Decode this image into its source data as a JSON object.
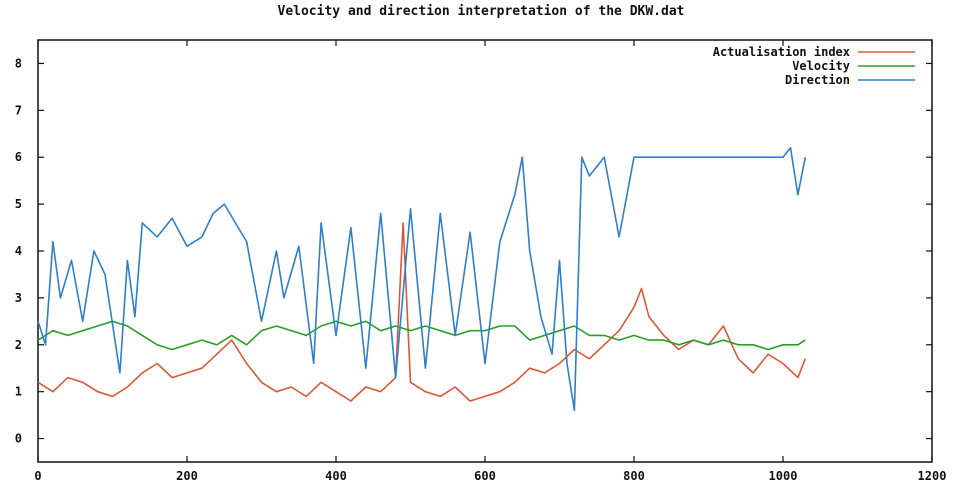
{
  "chart_data": {
    "type": "line",
    "title": "Velocity and direction interpretation of the DKW.dat",
    "xlabel": "",
    "ylabel": "",
    "xlim": [
      0,
      1200
    ],
    "ylim": [
      -0.5,
      8.5
    ],
    "xticks": [
      0,
      200,
      400,
      600,
      800,
      1000,
      1200
    ],
    "yticks": [
      0,
      1,
      2,
      3,
      4,
      5,
      6,
      7,
      8
    ],
    "grid": false,
    "legend_position": "top-right",
    "colors": {
      "Actualisation index": "#d9583b",
      "Velocity": "#2aa02a",
      "Direction": "#2f7fcc"
    },
    "series": [
      {
        "name": "Actualisation index",
        "x": [
          0,
          20,
          40,
          60,
          80,
          100,
          120,
          140,
          160,
          180,
          200,
          220,
          240,
          260,
          280,
          300,
          320,
          340,
          360,
          380,
          400,
          420,
          440,
          460,
          480,
          490,
          500,
          520,
          540,
          560,
          580,
          600,
          620,
          640,
          660,
          680,
          700,
          720,
          740,
          760,
          780,
          800,
          810,
          820,
          840,
          860,
          880,
          900,
          920,
          940,
          960,
          980,
          1000,
          1020,
          1030
        ],
        "y": [
          1.2,
          1.0,
          1.3,
          1.2,
          1.0,
          0.9,
          1.1,
          1.4,
          1.6,
          1.3,
          1.4,
          1.5,
          1.8,
          2.1,
          1.6,
          1.2,
          1.0,
          1.1,
          0.9,
          1.2,
          1.0,
          0.8,
          1.1,
          1.0,
          1.3,
          4.6,
          1.2,
          1.0,
          0.9,
          1.1,
          0.8,
          0.9,
          1.0,
          1.2,
          1.5,
          1.4,
          1.6,
          1.9,
          1.7,
          2.0,
          2.3,
          2.8,
          3.2,
          2.6,
          2.2,
          1.9,
          2.1,
          2.0,
          2.4,
          1.7,
          1.4,
          1.8,
          1.6,
          1.3,
          1.7
        ]
      },
      {
        "name": "Velocity",
        "x": [
          0,
          20,
          40,
          60,
          80,
          100,
          120,
          140,
          160,
          180,
          200,
          220,
          240,
          260,
          280,
          300,
          320,
          340,
          360,
          380,
          400,
          420,
          440,
          460,
          480,
          500,
          520,
          540,
          560,
          580,
          600,
          620,
          640,
          660,
          680,
          700,
          720,
          740,
          760,
          780,
          800,
          820,
          840,
          860,
          880,
          900,
          920,
          940,
          960,
          980,
          1000,
          1020,
          1030
        ],
        "y": [
          2.1,
          2.3,
          2.2,
          2.3,
          2.4,
          2.5,
          2.4,
          2.2,
          2.0,
          1.9,
          2.0,
          2.1,
          2.0,
          2.2,
          2.0,
          2.3,
          2.4,
          2.3,
          2.2,
          2.4,
          2.5,
          2.4,
          2.5,
          2.3,
          2.4,
          2.3,
          2.4,
          2.3,
          2.2,
          2.3,
          2.3,
          2.4,
          2.4,
          2.1,
          2.2,
          2.3,
          2.4,
          2.2,
          2.2,
          2.1,
          2.2,
          2.1,
          2.1,
          2.0,
          2.1,
          2.0,
          2.1,
          2.0,
          2.0,
          1.9,
          2.0,
          2.0,
          2.1
        ]
      },
      {
        "name": "Direction",
        "x": [
          0,
          10,
          20,
          30,
          45,
          60,
          75,
          90,
          110,
          120,
          130,
          140,
          160,
          180,
          200,
          220,
          235,
          250,
          265,
          280,
          300,
          320,
          330,
          350,
          370,
          380,
          400,
          420,
          440,
          460,
          480,
          500,
          520,
          540,
          560,
          580,
          600,
          620,
          640,
          650,
          660,
          675,
          690,
          700,
          710,
          720,
          730,
          740,
          760,
          780,
          800,
          820,
          840,
          900,
          960,
          1000,
          1010,
          1020,
          1030
        ],
        "y": [
          2.5,
          2.0,
          4.2,
          3.0,
          3.8,
          2.5,
          4.0,
          3.5,
          1.4,
          3.8,
          2.6,
          4.6,
          4.3,
          4.7,
          4.1,
          4.3,
          4.8,
          5.0,
          4.6,
          4.2,
          2.5,
          4.0,
          3.0,
          4.1,
          1.6,
          4.6,
          2.2,
          4.5,
          1.5,
          4.8,
          1.3,
          4.9,
          1.5,
          4.8,
          2.2,
          4.4,
          1.6,
          4.2,
          5.2,
          6.0,
          4.0,
          2.6,
          1.8,
          3.8,
          1.6,
          0.6,
          6.0,
          5.6,
          6.0,
          4.3,
          6.0,
          6.0,
          6.0,
          6.0,
          6.0,
          6.0,
          6.2,
          5.2,
          6.0
        ]
      }
    ]
  }
}
